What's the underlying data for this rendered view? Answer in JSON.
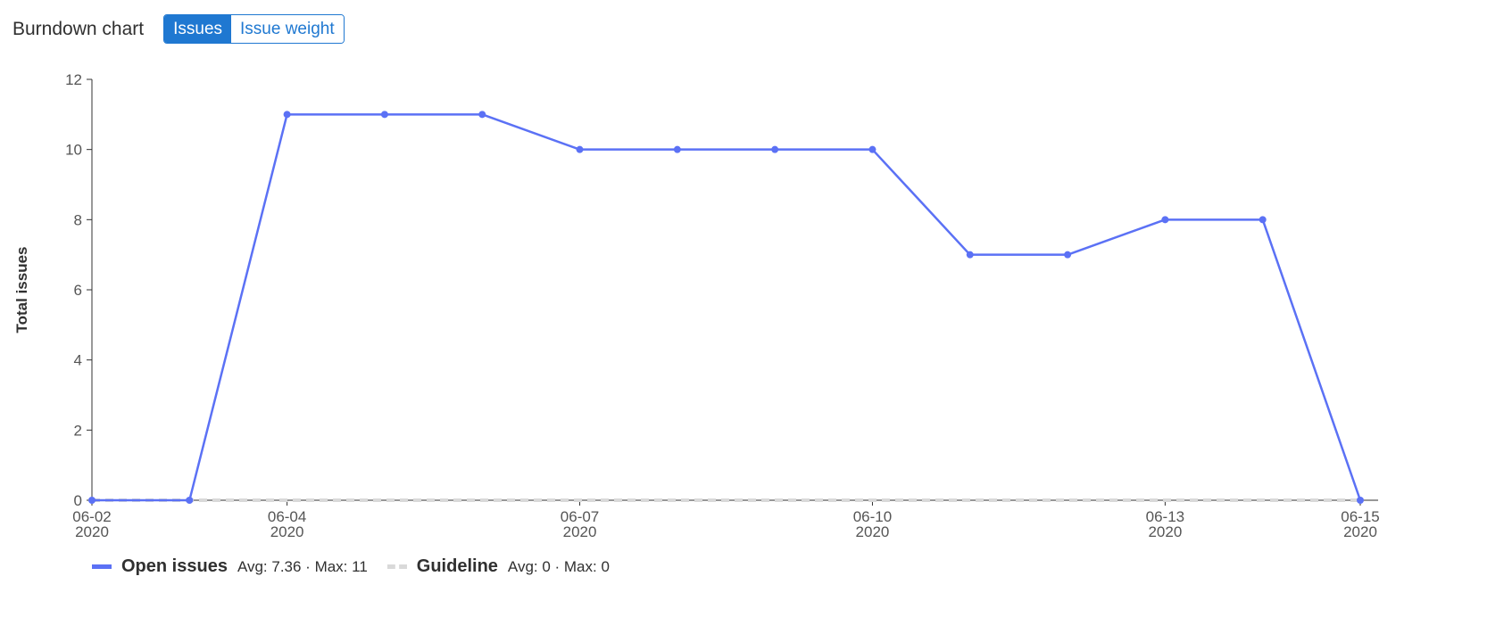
{
  "header": {
    "title": "Burndown chart",
    "toggle": {
      "issues_label": "Issues",
      "issue_weight_label": "Issue weight",
      "active": "issues"
    }
  },
  "colors": {
    "series_line": "#5b71f5",
    "guideline": "#d9d9d9",
    "axis": "#303030",
    "button_accent": "#1f78d1"
  },
  "legend": {
    "items": [
      {
        "name": "Open issues",
        "stats": "Avg: 7.36 · Max: 11"
      },
      {
        "name": "Guideline",
        "stats": "Avg: 0 · Max: 0"
      }
    ]
  },
  "chart_data": {
    "type": "line",
    "title": "",
    "xlabel": "",
    "ylabel": "Total issues",
    "ylim": [
      0,
      12
    ],
    "yticks": [
      0,
      2,
      4,
      6,
      8,
      10,
      12
    ],
    "x": [
      "2020-06-02",
      "2020-06-03",
      "2020-06-04",
      "2020-06-05",
      "2020-06-06",
      "2020-06-07",
      "2020-06-08",
      "2020-06-09",
      "2020-06-10",
      "2020-06-11",
      "2020-06-12",
      "2020-06-13",
      "2020-06-14",
      "2020-06-15"
    ],
    "xtick_labels": [
      {
        "date": "2020-06-02",
        "line1": "06-02",
        "line2": "2020"
      },
      {
        "date": "2020-06-04",
        "line1": "06-04",
        "line2": "2020"
      },
      {
        "date": "2020-06-07",
        "line1": "06-07",
        "line2": "2020"
      },
      {
        "date": "2020-06-10",
        "line1": "06-10",
        "line2": "2020"
      },
      {
        "date": "2020-06-13",
        "line1": "06-13",
        "line2": "2020"
      },
      {
        "date": "2020-06-15",
        "line1": "06-15",
        "line2": "2020"
      }
    ],
    "series": [
      {
        "name": "Open issues",
        "values": [
          0,
          0,
          11,
          11,
          11,
          10,
          10,
          10,
          10,
          7,
          7,
          8,
          8,
          0
        ]
      },
      {
        "name": "Guideline",
        "values": [
          0,
          0,
          0,
          0,
          0,
          0,
          0,
          0,
          0,
          0,
          0,
          0,
          0,
          0
        ]
      }
    ],
    "grid": false,
    "legend_position": "bottom-left"
  }
}
